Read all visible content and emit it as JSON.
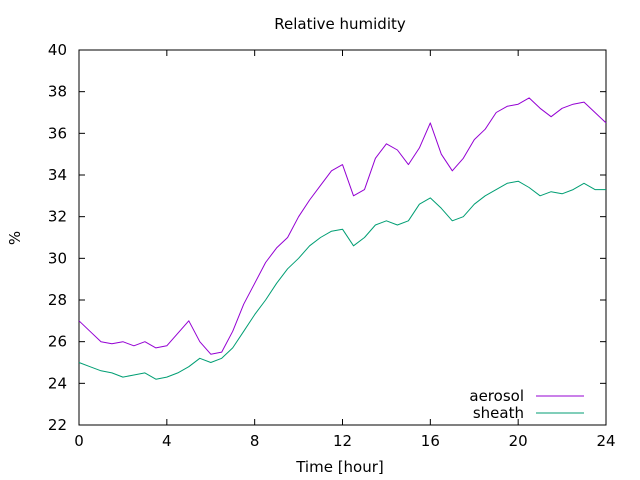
{
  "chart_data": {
    "type": "line",
    "title": "Relative humidity",
    "xlabel": "Time [hour]",
    "ylabel": "%",
    "xlim": [
      0,
      24
    ],
    "ylim": [
      22,
      40
    ],
    "xticks": [
      0,
      4,
      8,
      12,
      16,
      20,
      24
    ],
    "yticks": [
      22,
      24,
      26,
      28,
      30,
      32,
      34,
      36,
      38,
      40
    ],
    "grid": false,
    "legend_position": "bottom-right",
    "series": [
      {
        "name": "aerosol",
        "color": "#9400d3",
        "x": [
          0,
          0.5,
          1,
          1.5,
          2,
          2.5,
          3,
          3.5,
          4,
          4.5,
          5,
          5.5,
          6,
          6.5,
          7,
          7.5,
          8,
          8.5,
          9,
          9.5,
          10,
          10.5,
          11,
          11.5,
          12,
          12.5,
          13,
          13.5,
          14,
          14.5,
          15,
          15.5,
          16,
          16.5,
          17,
          17.5,
          18,
          18.5,
          19,
          19.5,
          20,
          20.5,
          21,
          21.5,
          22,
          22.5,
          23,
          23.5,
          24
        ],
        "y": [
          27.0,
          26.5,
          26.0,
          25.9,
          26.0,
          25.8,
          26.0,
          25.7,
          25.8,
          26.4,
          27.0,
          26.0,
          25.4,
          25.5,
          26.5,
          27.8,
          28.8,
          29.8,
          30.5,
          31.0,
          32.0,
          32.8,
          33.5,
          34.2,
          34.5,
          33.0,
          33.3,
          34.8,
          35.5,
          35.2,
          34.5,
          35.3,
          36.5,
          35.0,
          34.2,
          34.8,
          35.7,
          36.2,
          37.0,
          37.3,
          37.4,
          37.7,
          37.2,
          36.8,
          37.2,
          37.4,
          37.5,
          37.0,
          36.5
        ]
      },
      {
        "name": "sheath",
        "color": "#009e73",
        "x": [
          0,
          0.5,
          1,
          1.5,
          2,
          2.5,
          3,
          3.5,
          4,
          4.5,
          5,
          5.5,
          6,
          6.5,
          7,
          7.5,
          8,
          8.5,
          9,
          9.5,
          10,
          10.5,
          11,
          11.5,
          12,
          12.5,
          13,
          13.5,
          14,
          14.5,
          15,
          15.5,
          16,
          16.5,
          17,
          17.5,
          18,
          18.5,
          19,
          19.5,
          20,
          20.5,
          21,
          21.5,
          22,
          22.5,
          23,
          23.5,
          24
        ],
        "y": [
          25.0,
          24.8,
          24.6,
          24.5,
          24.3,
          24.4,
          24.5,
          24.2,
          24.3,
          24.5,
          24.8,
          25.2,
          25.0,
          25.2,
          25.7,
          26.5,
          27.3,
          28.0,
          28.8,
          29.5,
          30.0,
          30.6,
          31.0,
          31.3,
          31.4,
          30.6,
          31.0,
          31.6,
          31.8,
          31.6,
          31.8,
          32.6,
          32.9,
          32.4,
          31.8,
          32.0,
          32.6,
          33.0,
          33.3,
          33.6,
          33.7,
          33.4,
          33.0,
          33.2,
          33.1,
          33.3,
          33.6,
          33.3,
          33.3
        ]
      }
    ]
  }
}
